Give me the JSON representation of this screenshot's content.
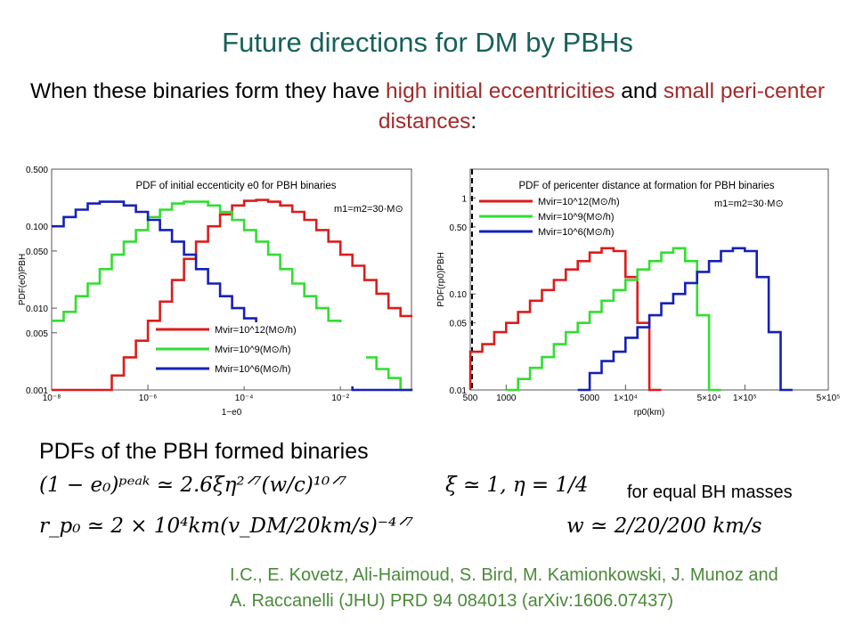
{
  "slide": {
    "title": "Future directions for DM by PBHs",
    "subtitle_pre": "When these binaries form they have ",
    "subtitle_hl1": "high initial eccentricities",
    "subtitle_mid": " and ",
    "subtitle_hl2": "small peri-center distances",
    "subtitle_post": ":",
    "heading": "PDFs of the PBH formed binaries",
    "eq1": "(1 − e₀)ᵖᵉᵃᵏ ≃ 2.6ξη²ᐟ⁷(w/c)¹⁰ᐟ⁷",
    "eq2": "ξ ≃ 1, η = 1/4",
    "eq_note": "for equal BH masses",
    "eq3": "r_p₀ ≃ 2 × 10⁴km(v_DM/20km/s)⁻⁴ᐟ⁷",
    "eq4": "w ≃ 2/20/200 km/s",
    "ref_line1": "I.C., E. Kovetz, Ali-Haimoud, S. Bird, M. Kamionkowski, J. Munoz and",
    "ref_line2": "A. Raccanelli (JHU) PRD 94 084013 (arXiv:1606.07437)"
  },
  "chart_data": [
    {
      "type": "line",
      "title": "PDF of initial eccenticity e0 for PBH binaries",
      "annotation": "m1=m2=30·M⊙",
      "xlabel": "1−e0",
      "ylabel": "PDF(e0)PBH",
      "xscale": "log",
      "yscale": "log",
      "xlim": [
        1e-08,
        0.3
      ],
      "ylim": [
        0.001,
        0.5
      ],
      "xticks": [
        {
          "v": 1e-08,
          "label": "10⁻⁸"
        },
        {
          "v": 1e-06,
          "label": "10⁻⁶"
        },
        {
          "v": 0.0001,
          "label": "10⁻⁴"
        },
        {
          "v": 0.01,
          "label": "10⁻²"
        }
      ],
      "yticks": [
        {
          "v": 0.001,
          "label": "0.001"
        },
        {
          "v": 0.005,
          "label": "0.005"
        },
        {
          "v": 0.01,
          "label": "0.010"
        },
        {
          "v": 0.05,
          "label": "0.050"
        },
        {
          "v": 0.1,
          "label": "0.100"
        },
        {
          "v": 0.5,
          "label": "0.500"
        }
      ],
      "legend_position": "lower-center",
      "bins_log10": [
        -8,
        -7.75,
        -7.5,
        -7.25,
        -7,
        -6.75,
        -6.5,
        -6.25,
        -6,
        -5.75,
        -5.5,
        -5.25,
        -5,
        -4.75,
        -4.5,
        -4.25,
        -4,
        -3.75,
        -3.5,
        -3.25,
        -3,
        -2.75,
        -2.5,
        -2.25,
        -2,
        -1.75,
        -1.5,
        -1.25,
        -1,
        -0.75,
        -0.5
      ],
      "series": [
        {
          "name": "Mvir=10^12(M⊙/h)",
          "color": "#dd1c1c",
          "values": [
            0.001,
            0.001,
            0.001,
            0.001,
            0.001,
            0.0015,
            0.0025,
            0.004,
            0.007,
            0.012,
            0.022,
            0.04,
            0.065,
            0.1,
            0.14,
            0.18,
            0.205,
            0.21,
            0.2,
            0.18,
            0.15,
            0.12,
            0.09,
            0.065,
            0.045,
            0.033,
            0.022,
            0.015,
            0.01,
            0.008
          ]
        },
        {
          "name": "Mvir=10^9(M⊙/h)",
          "color": "#33dd33",
          "values": [
            0.007,
            0.009,
            0.014,
            0.02,
            0.03,
            0.045,
            0.065,
            0.09,
            0.13,
            0.16,
            0.19,
            0.2,
            0.2,
            0.18,
            0.15,
            0.12,
            0.09,
            0.065,
            0.045,
            0.03,
            0.02,
            0.014,
            0.01,
            0.007,
            0.005,
            0.0035,
            0.0025,
            0.0018,
            0.0014,
            0.001
          ]
        },
        {
          "name": "Mvir=10^6(M⊙/h)",
          "color": "#1520b8",
          "values": [
            0.1,
            0.13,
            0.16,
            0.19,
            0.2,
            0.2,
            0.18,
            0.15,
            0.12,
            0.09,
            0.065,
            0.045,
            0.03,
            0.02,
            0.014,
            0.01,
            0.0075,
            0.006,
            0.005,
            0.004,
            0.0032,
            0.0025,
            0.002,
            0.0015,
            0.0012,
            0.001,
            0.001,
            0.001,
            0.001,
            0.001
          ]
        }
      ]
    },
    {
      "type": "line",
      "title": "PDF of pericenter distance at formation for PBH binaries",
      "annotation": "m1=m2=30·M⊙",
      "xlabel": "rp0(km)",
      "ylabel": "PDF(rp0)PBH",
      "xscale": "log",
      "yscale": "log",
      "xlim": [
        500,
        500000
      ],
      "ylim": [
        0.01,
        2
      ],
      "xticks": [
        {
          "v": 500,
          "label": "500"
        },
        {
          "v": 1000,
          "label": "1000"
        },
        {
          "v": 5000,
          "label": "5000"
        },
        {
          "v": 10000,
          "label": "1×10⁴"
        },
        {
          "v": 50000,
          "label": "5×10⁴"
        },
        {
          "v": 100000,
          "label": "1×10⁵"
        },
        {
          "v": 500000,
          "label": "5×10⁵"
        }
      ],
      "yticks": [
        {
          "v": 0.01,
          "label": "0.01"
        },
        {
          "v": 0.05,
          "label": "0.05"
        },
        {
          "v": 0.1,
          "label": "0.10"
        },
        {
          "v": 0.5,
          "label": "0.50"
        },
        {
          "v": 1,
          "label": "1"
        }
      ],
      "legend_position": "top-left",
      "bins_log10": [
        2.7,
        2.8,
        2.9,
        3.0,
        3.1,
        3.2,
        3.3,
        3.4,
        3.5,
        3.6,
        3.7,
        3.8,
        3.9,
        4.0,
        4.1,
        4.2,
        4.3,
        4.4,
        4.5,
        4.6,
        4.7,
        4.8,
        4.9,
        5.0,
        5.1,
        5.2,
        5.3,
        5.4
      ],
      "series": [
        {
          "name": "Mvir=10^12(M⊙/h)",
          "color": "#dd1c1c",
          "values": [
            0.025,
            0.03,
            0.04,
            0.05,
            0.065,
            0.085,
            0.11,
            0.14,
            0.18,
            0.22,
            0.27,
            0.3,
            0.28,
            0.15,
            0.05,
            0.01
          ]
        },
        {
          "name": "Mvir=10^9(M⊙/h)",
          "color": "#33dd33",
          "values": [
            null,
            null,
            null,
            0.01,
            0.013,
            0.017,
            0.022,
            0.03,
            0.04,
            0.05,
            0.065,
            0.085,
            0.11,
            0.14,
            0.18,
            0.22,
            0.27,
            0.3,
            0.22,
            0.06,
            0.01
          ]
        },
        {
          "name": "Mvir=10^6(M⊙/h)",
          "color": "#1520b8",
          "values": [
            null,
            null,
            null,
            null,
            null,
            null,
            null,
            null,
            null,
            0.01,
            0.015,
            0.02,
            0.025,
            0.035,
            0.045,
            0.06,
            0.08,
            0.1,
            0.13,
            0.17,
            0.22,
            0.28,
            0.3,
            0.28,
            0.15,
            0.04,
            0.01
          ]
        }
      ]
    }
  ]
}
